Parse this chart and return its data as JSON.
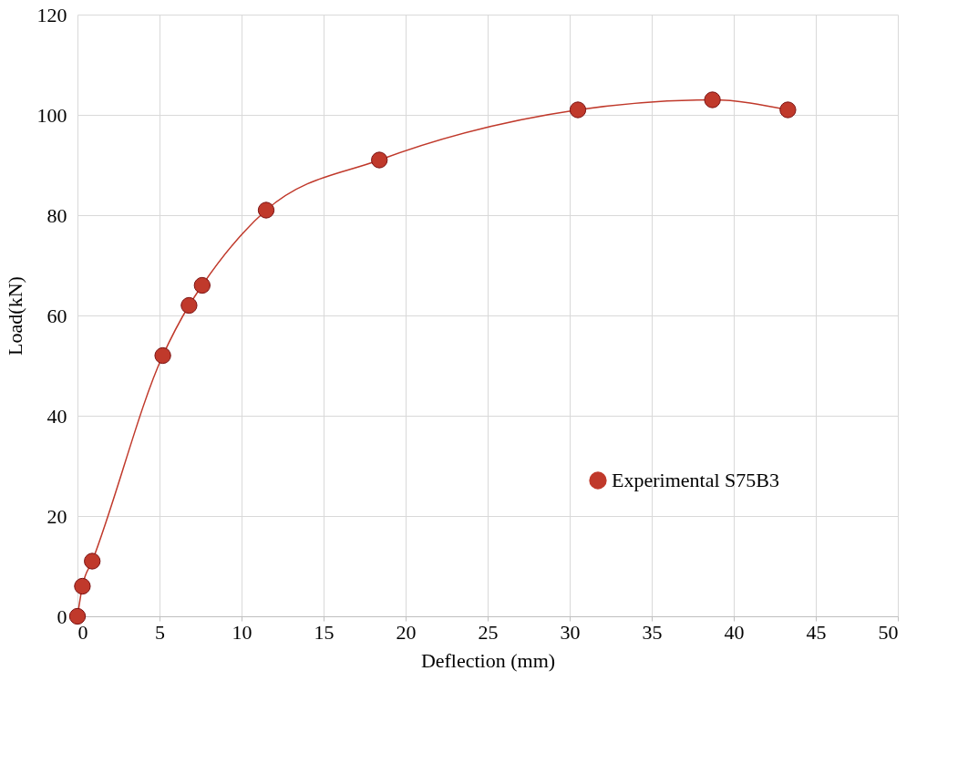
{
  "chart_data": {
    "type": "line",
    "xlabel": "Deflection (mm)",
    "ylabel": "Load(kN)",
    "series": [
      {
        "name": "Experimental S75B3",
        "color": "#c0392b",
        "x": [
          0,
          0.3,
          0.9,
          5.2,
          6.8,
          7.6,
          11.5,
          18.4,
          30.5,
          38.7,
          43.3
        ],
        "values": [
          0,
          6,
          11,
          52,
          62,
          66,
          81,
          91,
          101,
          103,
          101
        ]
      }
    ],
    "xlim": [
      0,
      50
    ],
    "xticks": [
      0,
      5,
      10,
      15,
      20,
      25,
      30,
      35,
      40,
      45,
      50
    ],
    "ylim": [
      0,
      120
    ],
    "yticks": [
      0,
      20,
      40,
      60,
      80,
      100,
      120
    ],
    "grid": true,
    "legend": "right",
    "marker": "circle",
    "line_style": "solid"
  }
}
